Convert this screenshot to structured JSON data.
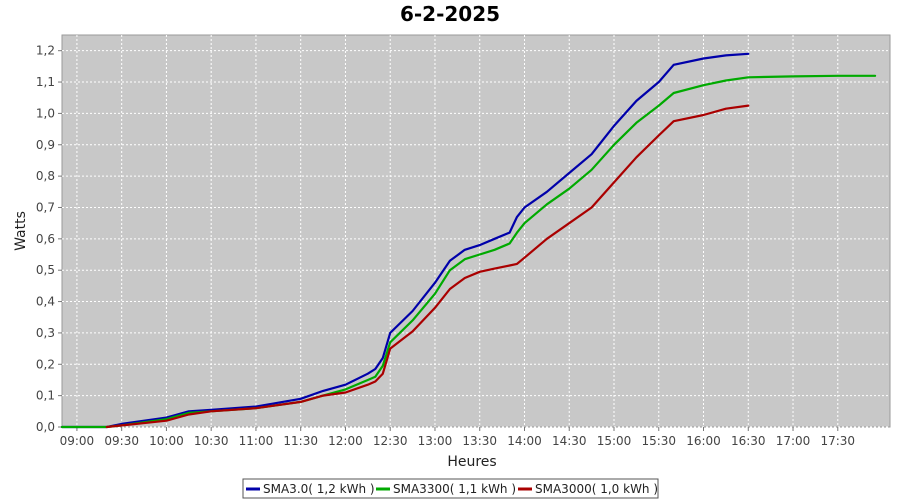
{
  "chart_data": {
    "type": "line",
    "title": "6-2-2025",
    "xlabel": "Heures",
    "ylabel": "Watts",
    "x_tick_labels": [
      "09:00",
      "09:30",
      "10:00",
      "10:30",
      "11:00",
      "11:30",
      "12:00",
      "12:30",
      "13:00",
      "13:30",
      "14:00",
      "14:30",
      "15:00",
      "15:30",
      "16:00",
      "16:30",
      "17:00",
      "17:30"
    ],
    "y_tick_labels": [
      "0,0",
      "0,1",
      "0,2",
      "0,3",
      "0,4",
      "0,5",
      "0,6",
      "0,7",
      "0,8",
      "0,9",
      "1,0",
      "1,1",
      "1,2"
    ],
    "ylim": [
      0,
      1.25
    ],
    "xlim": [
      "08:50",
      "18:05"
    ],
    "grid": true,
    "legend_position": "bottom",
    "series": [
      {
        "name": "SMA3.0( 1,2 kWh )",
        "color": "#0000aa",
        "x": [
          "08:50",
          "09:20",
          "09:30",
          "10:00",
          "10:15",
          "10:30",
          "11:00",
          "11:30",
          "11:45",
          "12:00",
          "12:15",
          "12:20",
          "12:25",
          "12:30",
          "12:45",
          "13:00",
          "13:10",
          "13:20",
          "13:30",
          "13:40",
          "13:50",
          "13:55",
          "14:00",
          "14:15",
          "14:30",
          "14:45",
          "15:00",
          "15:15",
          "15:30",
          "15:40",
          "16:00",
          "16:15",
          "16:30"
        ],
        "y": [
          0,
          0,
          0.01,
          0.03,
          0.05,
          0.055,
          0.065,
          0.09,
          0.115,
          0.135,
          0.17,
          0.185,
          0.22,
          0.3,
          0.37,
          0.46,
          0.53,
          0.565,
          0.58,
          0.6,
          0.62,
          0.67,
          0.7,
          0.75,
          0.81,
          0.87,
          0.96,
          1.04,
          1.1,
          1.155,
          1.175,
          1.185,
          1.19
        ]
      },
      {
        "name": "SMA3300( 1,1 kWh )",
        "color": "#00aa00",
        "x": [
          "08:50",
          "09:20",
          "09:30",
          "10:00",
          "10:15",
          "10:30",
          "11:00",
          "11:30",
          "11:45",
          "12:00",
          "12:15",
          "12:20",
          "12:25",
          "12:30",
          "12:45",
          "13:00",
          "13:10",
          "13:20",
          "13:30",
          "13:40",
          "13:50",
          "13:55",
          "14:00",
          "14:15",
          "14:30",
          "14:45",
          "15:00",
          "15:15",
          "15:30",
          "15:40",
          "16:00",
          "16:15",
          "16:30",
          "17:00",
          "17:30",
          "17:55"
        ],
        "y": [
          0,
          0,
          0.005,
          0.025,
          0.045,
          0.05,
          0.06,
          0.08,
          0.1,
          0.12,
          0.15,
          0.16,
          0.195,
          0.27,
          0.34,
          0.425,
          0.5,
          0.535,
          0.55,
          0.565,
          0.585,
          0.62,
          0.65,
          0.71,
          0.76,
          0.82,
          0.9,
          0.97,
          1.025,
          1.065,
          1.09,
          1.105,
          1.115,
          1.118,
          1.12,
          1.12
        ]
      },
      {
        "name": "SMA3000( 1,0 kWh )",
        "color": "#aa0000",
        "x": [
          "09:20",
          "09:30",
          "10:00",
          "10:15",
          "10:30",
          "11:00",
          "11:30",
          "11:45",
          "12:00",
          "12:15",
          "12:20",
          "12:25",
          "12:30",
          "12:45",
          "13:00",
          "13:10",
          "13:20",
          "13:30",
          "13:40",
          "13:50",
          "13:55",
          "14:00",
          "14:15",
          "14:30",
          "14:45",
          "15:00",
          "15:15",
          "15:30",
          "15:40",
          "16:00",
          "16:15",
          "16:30"
        ],
        "y": [
          0,
          0.005,
          0.02,
          0.04,
          0.05,
          0.06,
          0.08,
          0.1,
          0.11,
          0.135,
          0.145,
          0.17,
          0.25,
          0.305,
          0.38,
          0.44,
          0.475,
          0.495,
          0.505,
          0.515,
          0.52,
          0.54,
          0.6,
          0.65,
          0.7,
          0.78,
          0.86,
          0.93,
          0.975,
          0.995,
          1.015,
          1.025
        ]
      }
    ]
  }
}
